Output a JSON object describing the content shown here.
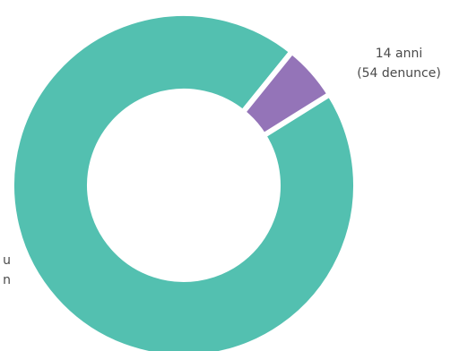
{
  "chart_data": {
    "type": "pie",
    "variant": "donut",
    "title": "",
    "series": [
      {
        "name": "",
        "values": [
          {
            "category": "u",
            "value": 94.7,
            "color": "#53c0b0"
          },
          {
            "category": "14 anni",
            "value": 5.3,
            "color": "#9474b8"
          }
        ]
      }
    ],
    "labels": {
      "small": {
        "lines": [
          "14 anni",
          "(54 denunce)"
        ]
      },
      "large": {
        "lines": [
          "u",
          "n"
        ]
      }
    },
    "legend": "none"
  }
}
